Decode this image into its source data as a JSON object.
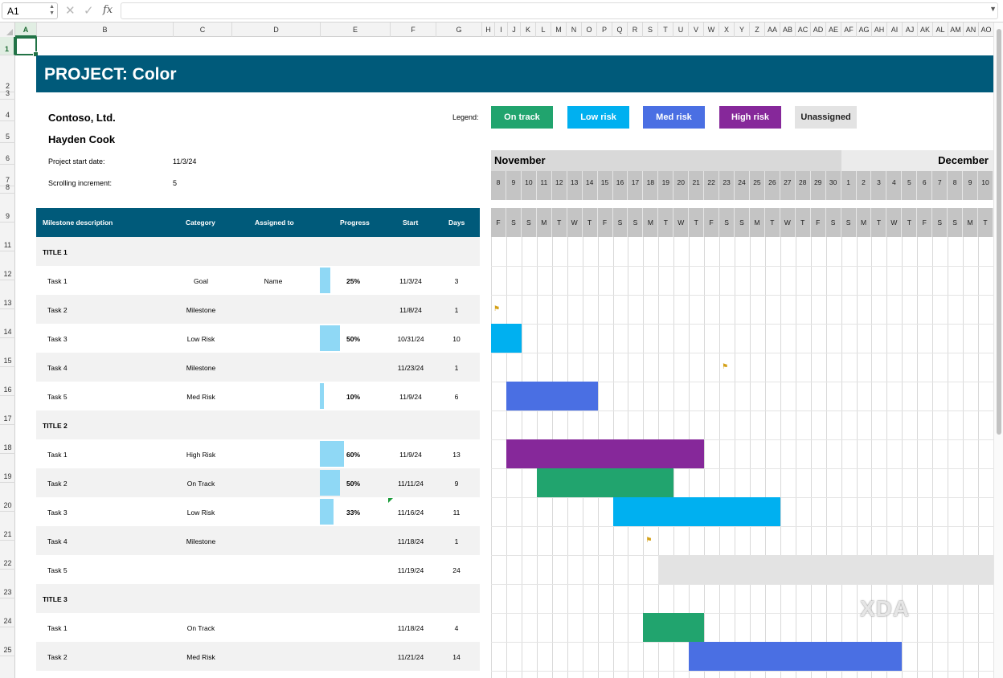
{
  "formula_bar": {
    "cell_ref": "A1",
    "fx_label": "fx",
    "value": ""
  },
  "columns": [
    "A",
    "B",
    "C",
    "D",
    "E",
    "F",
    "G",
    "H",
    "I",
    "J",
    "K",
    "L",
    "M",
    "N",
    "O",
    "P",
    "Q",
    "R",
    "S",
    "T",
    "U",
    "V",
    "W",
    "X",
    "Y",
    "Z",
    "AA",
    "AB",
    "AC",
    "AD",
    "AE",
    "AF",
    "AG",
    "AH",
    "AI",
    "AJ",
    "AK",
    "AL",
    "AM",
    "AN",
    "AO"
  ],
  "selected_column": "A",
  "selected_row": "1",
  "row_numbers": [
    "1",
    "2",
    "3",
    "4",
    "5",
    "6",
    "7",
    "8",
    "9",
    "11",
    "12",
    "13",
    "14",
    "15",
    "16",
    "17",
    "18",
    "19",
    "20",
    "21",
    "22",
    "23",
    "24",
    "25"
  ],
  "project": {
    "title": "PROJECT: Color",
    "company": "Contoso, Ltd.",
    "manager": "Hayden Cook",
    "start_date_label": "Project start date:",
    "start_date": "11/3/24",
    "increment_label": "Scrolling increment:",
    "increment": "5"
  },
  "legend": {
    "label": "Legend:",
    "items": [
      {
        "label": "On track",
        "color": "#21a46e",
        "text_color": "#ffffff"
      },
      {
        "label": "Low risk",
        "color": "#00b0f0",
        "text_color": "#ffffff"
      },
      {
        "label": "Med risk",
        "color": "#4a6fe3",
        "text_color": "#ffffff"
      },
      {
        "label": "High risk",
        "color": "#86289a",
        "text_color": "#ffffff"
      },
      {
        "label": "Unassigned",
        "color": "#e3e3e3",
        "text_color": "#222222"
      }
    ]
  },
  "months": [
    {
      "name": "November",
      "bg": "#d9d9d9"
    },
    {
      "name": "December",
      "bg": "#ebebeb"
    }
  ],
  "days": [
    "8",
    "9",
    "10",
    "11",
    "12",
    "13",
    "14",
    "15",
    "16",
    "17",
    "18",
    "19",
    "20",
    "21",
    "22",
    "23",
    "24",
    "25",
    "26",
    "27",
    "28",
    "29",
    "30",
    "1",
    "2",
    "3",
    "4",
    "5",
    "6",
    "7",
    "8",
    "9",
    "10"
  ],
  "weekdays": [
    "F",
    "S",
    "S",
    "M",
    "T",
    "W",
    "T",
    "F",
    "S",
    "S",
    "M",
    "T",
    "W",
    "T",
    "F",
    "S",
    "S",
    "M",
    "T",
    "W",
    "T",
    "F",
    "S",
    "S",
    "M",
    "T",
    "W",
    "T",
    "F",
    "S",
    "S",
    "M",
    "T"
  ],
  "table": {
    "headers": {
      "milestone": "Milestone description",
      "category": "Category",
      "assigned": "Assigned to",
      "progress": "Progress",
      "start": "Start",
      "days": "Days"
    },
    "rows": [
      {
        "type": "title",
        "desc": "TITLE 1"
      },
      {
        "type": "task",
        "desc": "Task 1",
        "category": "Goal",
        "assigned": "Name",
        "progress": 25,
        "progress_label": "25%",
        "start": "11/3/24",
        "days": "3"
      },
      {
        "type": "task",
        "desc": "Task 2",
        "category": "Milestone",
        "assigned": "",
        "progress": 0,
        "progress_label": "",
        "start": "11/8/24",
        "days": "1"
      },
      {
        "type": "task",
        "desc": "Task 3",
        "category": "Low Risk",
        "assigned": "",
        "progress": 50,
        "progress_label": "50%",
        "start": "10/31/24",
        "days": "10"
      },
      {
        "type": "task",
        "desc": "Task 4",
        "category": "Milestone",
        "assigned": "",
        "progress": 0,
        "progress_label": "",
        "start": "11/23/24",
        "days": "1"
      },
      {
        "type": "task",
        "desc": "Task 5",
        "category": "Med Risk",
        "assigned": "",
        "progress": 10,
        "progress_label": "10%",
        "start": "11/9/24",
        "days": "6"
      },
      {
        "type": "title",
        "desc": "TITLE 2"
      },
      {
        "type": "task",
        "desc": "Task 1",
        "category": "High Risk",
        "assigned": "",
        "progress": 60,
        "progress_label": "60%",
        "start": "11/9/24",
        "days": "13"
      },
      {
        "type": "task",
        "desc": "Task 2",
        "category": "On Track",
        "assigned": "",
        "progress": 50,
        "progress_label": "50%",
        "start": "11/11/24",
        "days": "9"
      },
      {
        "type": "task",
        "desc": "Task 3",
        "category": "Low Risk",
        "assigned": "",
        "progress": 33,
        "progress_label": "33%",
        "start": "11/16/24",
        "days": "11"
      },
      {
        "type": "task",
        "desc": "Task 4",
        "category": "Milestone",
        "assigned": "",
        "progress": 0,
        "progress_label": "",
        "start": "11/18/24",
        "days": "1"
      },
      {
        "type": "task",
        "desc": "Task 5",
        "category": "",
        "assigned": "",
        "progress": 0,
        "progress_label": "",
        "start": "11/19/24",
        "days": "24"
      },
      {
        "type": "title",
        "desc": "TITLE 3"
      },
      {
        "type": "task",
        "desc": "Task 1",
        "category": "On Track",
        "assigned": "",
        "progress": 0,
        "progress_label": "",
        "start": "11/18/24",
        "days": "4"
      },
      {
        "type": "task",
        "desc": "Task 2",
        "category": "Med Risk",
        "assigned": "",
        "progress": 0,
        "progress_label": "",
        "start": "11/21/24",
        "days": "14"
      }
    ]
  },
  "watermark": "XDA"
}
